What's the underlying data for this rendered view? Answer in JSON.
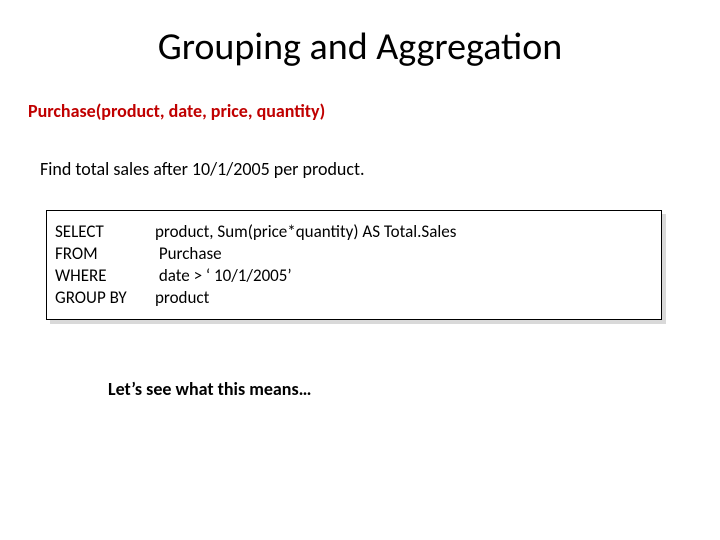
{
  "title": "Grouping and Aggregation",
  "schema": "Purchase(product, date, price, quantity)",
  "prompt": "Find total sales after 10/1/2005 per product.",
  "code": {
    "line1_kw": "SELECT",
    "line1_body": "product, Sum(price*quantity) AS Total.Sales",
    "line2_kw": "FROM",
    "line2_body": " Purchase",
    "line3_kw": "WHERE",
    "line3_body": " date > ‘ 10/1/2005’",
    "line4_kw": "GROUP BY",
    "line4_body": "product"
  },
  "footer": "Let’s see what this means…",
  "colors": {
    "schema_color": "#c00000",
    "text_color": "#000000",
    "background": "#ffffff",
    "shadow": "#d9d9d9"
  },
  "fonts": {
    "title_size_pt": 38,
    "body_size_pt": 18,
    "code_size_pt": 17
  }
}
